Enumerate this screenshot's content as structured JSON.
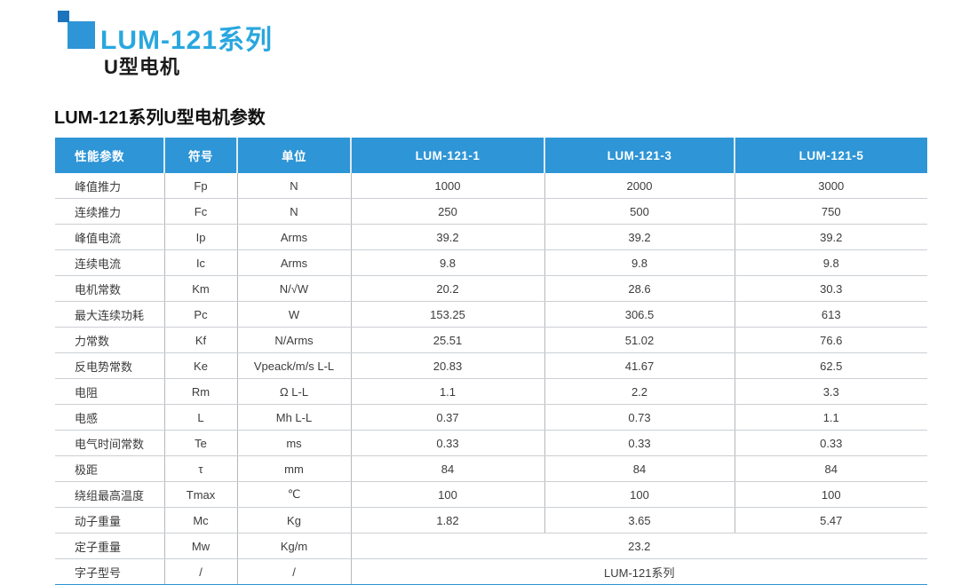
{
  "page": {
    "title": "LUM-121系列",
    "subtitle": "U型电机",
    "section_title": "LUM-121系列U型电机参数"
  },
  "colors": {
    "header_blue": "#2e95d6",
    "title_blue": "#29a7df",
    "logo_dark_blue": "#1c75bc",
    "logo_light_blue": "#2e95d6",
    "bottom_bar_blue": "#2e95d6"
  },
  "table": {
    "headers": [
      "性能参数",
      "符号",
      "单位",
      "LUM-121-1",
      "LUM-121-3",
      "LUM-121-5"
    ],
    "rows": [
      {
        "param": "峰值推力",
        "symbol": "Fp",
        "unit": "N",
        "values": [
          "1000",
          "2000",
          "3000"
        ]
      },
      {
        "param": "连续推力",
        "symbol": "Fc",
        "unit": "N",
        "values": [
          "250",
          "500",
          "750"
        ]
      },
      {
        "param": "峰值电流",
        "symbol": "Ip",
        "unit": "Arms",
        "values": [
          "39.2",
          "39.2",
          "39.2"
        ]
      },
      {
        "param": "连续电流",
        "symbol": "Ic",
        "unit": "Arms",
        "values": [
          "9.8",
          "9.8",
          "9.8"
        ]
      },
      {
        "param": "电机常数",
        "symbol": "Km",
        "unit": "N/√W",
        "values": [
          "20.2",
          "28.6",
          "30.3"
        ]
      },
      {
        "param": "最大连续功耗",
        "symbol": "Pc",
        "unit": "W",
        "values": [
          "153.25",
          "306.5",
          "613"
        ]
      },
      {
        "param": "力常数",
        "symbol": "Kf",
        "unit": "N/Arms",
        "values": [
          "25.51",
          "51.02",
          "76.6"
        ]
      },
      {
        "param": "反电势常数",
        "symbol": "Ke",
        "unit": "Vpeack/m/s L-L",
        "values": [
          "20.83",
          "41.67",
          "62.5"
        ]
      },
      {
        "param": "电阻",
        "symbol": "Rm",
        "unit": "Ω L-L",
        "values": [
          "1.1",
          "2.2",
          "3.3"
        ]
      },
      {
        "param": "电感",
        "symbol": "L",
        "unit": "Mh L-L",
        "values": [
          "0.37",
          "0.73",
          "1.1"
        ]
      },
      {
        "param": "电气时间常数",
        "symbol": "Te",
        "unit": "ms",
        "values": [
          "0.33",
          "0.33",
          "0.33"
        ]
      },
      {
        "param": "极距",
        "symbol": "τ",
        "unit": "mm",
        "values": [
          "84",
          "84",
          "84"
        ]
      },
      {
        "param": "绕组最高温度",
        "symbol": "Tmax",
        "unit": "℃",
        "values": [
          "100",
          "100",
          "100"
        ]
      },
      {
        "param": "动子重量",
        "symbol": "Mc",
        "unit": "Kg",
        "values": [
          "1.82",
          "3.65",
          "5.47"
        ]
      },
      {
        "param": "定子重量",
        "symbol": "Mw",
        "unit": "Kg/m",
        "span_value": "23.2"
      },
      {
        "param": "字子型号",
        "symbol": "/",
        "unit": "/",
        "span_value": "LUM-121系列"
      }
    ]
  }
}
